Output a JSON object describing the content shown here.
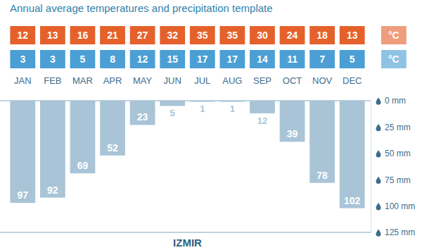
{
  "chart_data": {
    "type": "bar",
    "title": "Annual average temperatures and precipitation template",
    "xlabel": "IZMIR",
    "categories": [
      "JAN",
      "FEB",
      "MAR",
      "APR",
      "MAY",
      "JUN",
      "JUL",
      "AUG",
      "SEP",
      "OCT",
      "NOV",
      "DEC"
    ],
    "series": [
      {
        "name": "°C",
        "type": "text",
        "color": "#e5612b",
        "values": [
          12,
          13,
          16,
          21,
          27,
          32,
          35,
          35,
          30,
          24,
          18,
          13
        ]
      },
      {
        "name": "°C",
        "type": "text",
        "color": "#4b9fd4",
        "values": [
          3,
          3,
          5,
          8,
          12,
          15,
          17,
          17,
          14,
          11,
          7,
          5
        ]
      },
      {
        "type": "bar",
        "color": "#a9c4d7",
        "values": [
          97,
          92,
          69,
          52,
          23,
          5,
          1,
          1,
          12,
          39,
          78,
          102
        ]
      }
    ],
    "ylim": [
      0,
      125
    ],
    "yticks": [
      {
        "value": 0,
        "label": "0 mm"
      },
      {
        "value": 25,
        "label": "25 mm"
      },
      {
        "value": 50,
        "label": "50 mm"
      },
      {
        "value": 75,
        "label": "75 mm"
      },
      {
        "value": 100,
        "label": "100 mm"
      },
      {
        "value": 125,
        "label": "125 mm"
      }
    ],
    "grid": false,
    "data_labels": true
  }
}
